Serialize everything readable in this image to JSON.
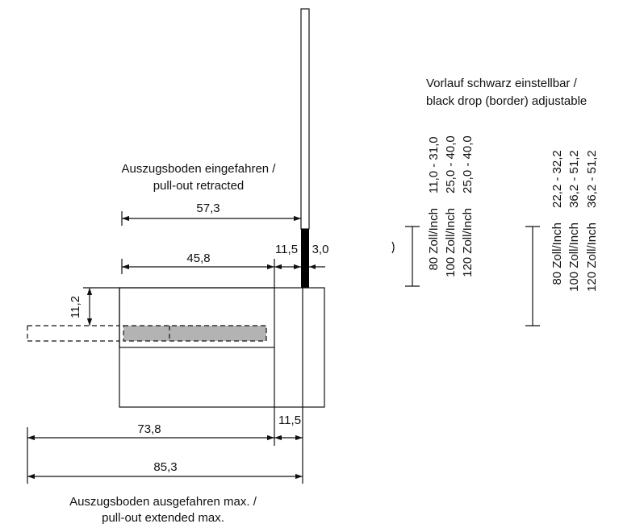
{
  "labels": {
    "retracted_de": "Auszugsboden eingefahren /",
    "retracted_en": "pull-out retracted",
    "extended_de": "Auszugsboden ausgefahren max. /",
    "extended_en": "pull-out extended max.",
    "drop_de": "Vorlauf schwarz einstellbar /",
    "drop_en": "black drop (border) adjustable"
  },
  "dimensions": {
    "d_57_3": "57,3",
    "d_45_8": "45,8",
    "d_11_5_top": "11,5",
    "d_3_0": "3,0",
    "d_11_2": "11,2",
    "d_73_8": "73,8",
    "d_11_5_bottom": "11,5",
    "d_85_3": "85,3"
  },
  "table1": {
    "sizes": [
      "80 Zoll/Inch",
      "100 Zoll/Inch",
      "120 Zoll/Inch"
    ],
    "ranges": [
      "11,0 - 31,0",
      "25,0 - 40,0",
      "25,0 - 40,0"
    ]
  },
  "table2": {
    "sizes": [
      "80 Zoll/Inch",
      "100 Zoll/Inch",
      "120 Zoll/Inch"
    ],
    "ranges": [
      "22,2 - 32,2",
      "36,2 - 51,2",
      "36,2 - 51,2"
    ]
  },
  "colors": {
    "line": "#111111",
    "drop": "#000000",
    "floor": "#b3b3b3"
  }
}
